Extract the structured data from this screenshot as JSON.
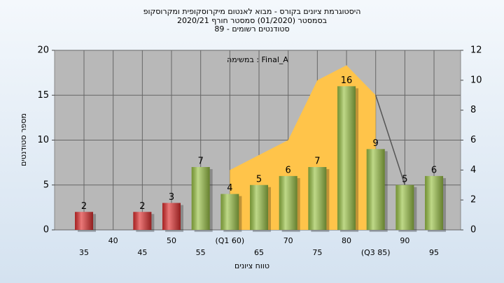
{
  "chart_data": {
    "type": "bar",
    "title": "היסטוגרמת ציונים בקורס - מבוא לאנטום מיקרוסקופית ומקרוסקופ",
    "subtitle": "בסמסטר  (01/2020)  סמסטר חורף 2020/21",
    "subtitle2": "סטודנטים רשומים - 89",
    "annotation": "במשימה : Final_A",
    "y_label": "מספר סטודנטים",
    "x_label": "טווח ציונים",
    "categories": [
      "35",
      "40",
      "45",
      "50",
      "55",
      "(Q1 60)",
      "65",
      "70",
      "75",
      "80",
      "(Q3 85)",
      "90",
      "95"
    ],
    "series": [
      {
        "values": [
          2,
          null,
          2,
          3,
          7,
          4,
          5,
          6,
          7,
          16,
          9,
          5,
          6
        ],
        "colors": [
          "#e03030",
          null,
          "#e03030",
          "#e03030",
          "#9cc448",
          "#9cc448",
          "#9cc448",
          "#9cc448",
          "#9cc448",
          "#9cc448",
          "#9cc448",
          "#9cc448",
          "#9cc448"
        ]
      },
      {
        "type": "area",
        "axis": "y2",
        "color": "#ffc44a",
        "values": [
          null,
          null,
          null,
          null,
          null,
          4,
          5,
          6,
          10,
          11,
          9,
          null,
          null
        ]
      },
      {
        "type": "line",
        "axis": "y2",
        "color": "#555555",
        "values": [
          null,
          null,
          null,
          null,
          null,
          null,
          null,
          null,
          null,
          null,
          9,
          3,
          null
        ]
      }
    ],
    "ylim": [
      0,
      20
    ],
    "yticks": [
      0,
      5,
      10,
      15,
      20
    ],
    "y2lim": [
      0,
      12
    ],
    "y2ticks": [
      0,
      2,
      4,
      6,
      8,
      10,
      12
    ],
    "grid": true
  }
}
